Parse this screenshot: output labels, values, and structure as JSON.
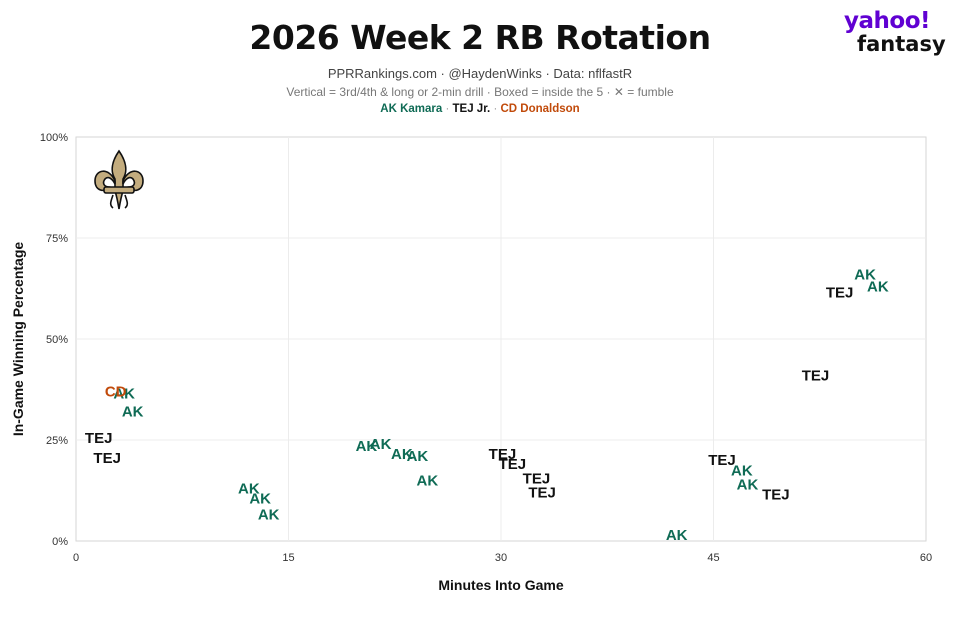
{
  "header": {
    "title": "2026 Week 2 RB Rotation",
    "subtitle": "PPRRankings.com · @HaydenWinks · Data: nflfastR",
    "note": "Vertical = 3rd/4th & long or 2-min drill · Boxed = inside the 5 · ✕ = fumble",
    "legend": [
      {
        "label": "AK Kamara",
        "color": "#0f6b55"
      },
      {
        "label": "TEJ Jr.",
        "color": "#111111"
      },
      {
        "label": "CD Donaldson",
        "color": "#c14a0a"
      }
    ],
    "legend_sep": "·"
  },
  "brand": {
    "line1": "yahoo!",
    "line2": "fantasy"
  },
  "team_logo": "saints-fleur-de-lis-icon",
  "chart_data": {
    "type": "scatter",
    "xlabel": "Minutes Into Game",
    "ylabel": "In-Game Winning Percentage",
    "xlim": [
      0,
      60
    ],
    "ylim": [
      0,
      100
    ],
    "x_ticks": [
      0,
      15,
      30,
      45,
      60
    ],
    "x_tick_labels": [
      "0",
      "15",
      "30",
      "45",
      "60"
    ],
    "y_ticks": [
      0,
      25,
      50,
      75,
      100
    ],
    "y_tick_labels": [
      "0%",
      "25%",
      "50%",
      "75%",
      "100%"
    ],
    "grid": true,
    "series": [
      {
        "name": "AK Kamara",
        "marker": "AK",
        "color": "#0f6b55",
        "points": [
          {
            "x": 3.4,
            "y": 36.5
          },
          {
            "x": 4.0,
            "y": 32
          },
          {
            "x": 12.2,
            "y": 13
          },
          {
            "x": 13.0,
            "y": 10.5
          },
          {
            "x": 13.6,
            "y": 6.5
          },
          {
            "x": 20.5,
            "y": 23.5
          },
          {
            "x": 21.5,
            "y": 24
          },
          {
            "x": 23.0,
            "y": 21.5
          },
          {
            "x": 24.1,
            "y": 21
          },
          {
            "x": 24.8,
            "y": 15
          },
          {
            "x": 42.4,
            "y": 1.5
          },
          {
            "x": 47.0,
            "y": 17.5
          },
          {
            "x": 47.4,
            "y": 14
          },
          {
            "x": 55.7,
            "y": 66
          },
          {
            "x": 56.6,
            "y": 63
          }
        ]
      },
      {
        "name": "TEJ Jr.",
        "marker": "TEJ",
        "color": "#111111",
        "points": [
          {
            "x": 1.6,
            "y": 25.5
          },
          {
            "x": 2.2,
            "y": 20.5
          },
          {
            "x": 30.1,
            "y": 21.5
          },
          {
            "x": 30.8,
            "y": 19
          },
          {
            "x": 32.5,
            "y": 15.5
          },
          {
            "x": 32.9,
            "y": 12
          },
          {
            "x": 45.6,
            "y": 20
          },
          {
            "x": 49.4,
            "y": 11.5
          },
          {
            "x": 53.9,
            "y": 61.5
          },
          {
            "x": 52.2,
            "y": 41
          }
        ]
      },
      {
        "name": "CD Donaldson",
        "marker": "CD",
        "color": "#c14a0a",
        "points": [
          {
            "x": 2.8,
            "y": 37
          }
        ]
      }
    ]
  }
}
